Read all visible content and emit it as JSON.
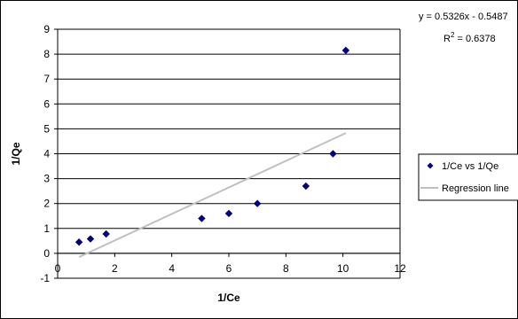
{
  "chart_data": {
    "type": "scatter",
    "xlabel": "1/Ce",
    "ylabel": "1/Qe",
    "xlim": [
      0,
      12
    ],
    "ylim": [
      -1,
      9
    ],
    "x_ticks": [
      "0",
      "2",
      "4",
      "6",
      "8",
      "10",
      "12"
    ],
    "y_ticks": [
      "-1",
      "0",
      "1",
      "2",
      "3",
      "4",
      "5",
      "6",
      "7",
      "8",
      "9"
    ],
    "grid": "horizontal",
    "legend_position": "right",
    "series": [
      {
        "name": "1/Ce vs 1/Qe",
        "kind": "scatter",
        "color": "#000080",
        "points": [
          {
            "x": 0.75,
            "y": 0.45
          },
          {
            "x": 1.15,
            "y": 0.58
          },
          {
            "x": 1.7,
            "y": 0.78
          },
          {
            "x": 5.05,
            "y": 1.4
          },
          {
            "x": 6.0,
            "y": 1.6
          },
          {
            "x": 7.0,
            "y": 2.0
          },
          {
            "x": 8.7,
            "y": 2.7
          },
          {
            "x": 9.65,
            "y": 4.0
          },
          {
            "x": 10.1,
            "y": 8.15
          }
        ]
      },
      {
        "name": "Regression line",
        "kind": "line",
        "color": "#c0c0c0",
        "slope": 0.5326,
        "intercept": -0.5487,
        "x_range": [
          0.75,
          10.1
        ]
      }
    ],
    "annotations": {
      "equation": "y = 0.5326x - 0.5487",
      "r2_label": "R",
      "r2_sup": "2",
      "r2_value": " = 0.6378"
    }
  }
}
